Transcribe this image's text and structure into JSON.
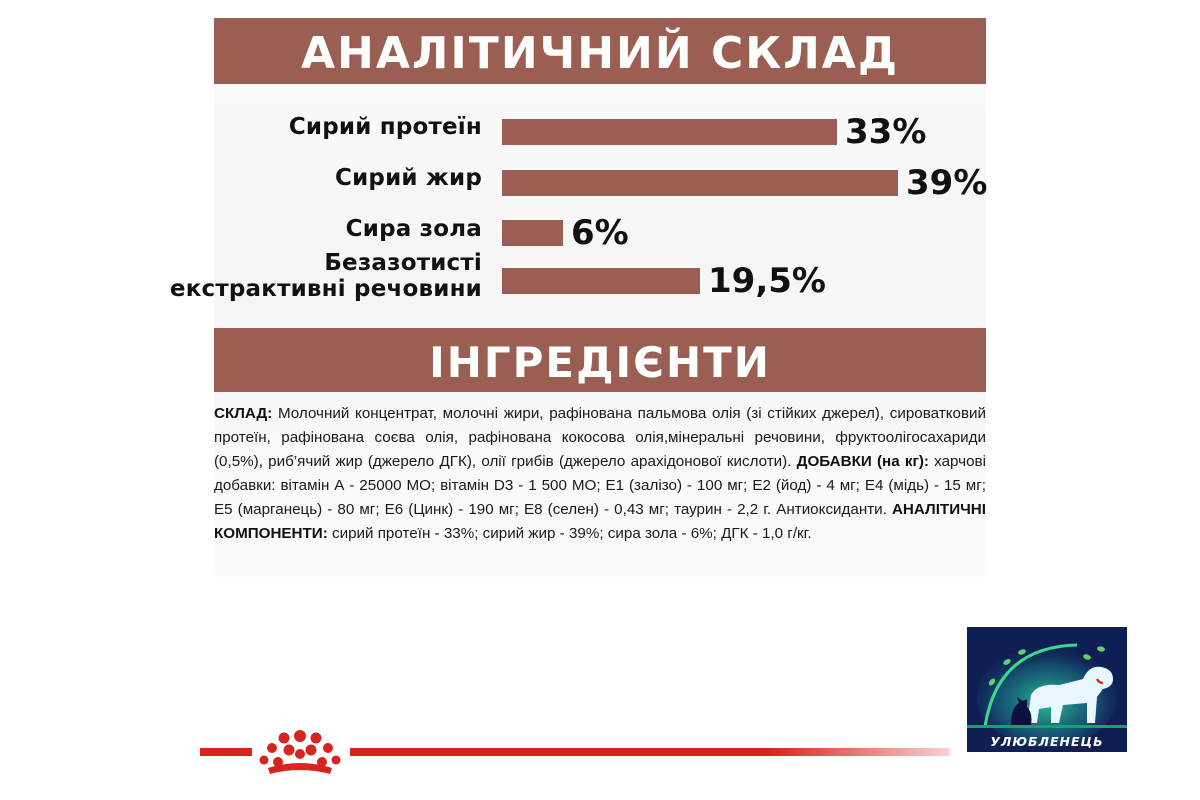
{
  "analysis": {
    "title": "АНАЛІТИЧНИЙ СКЛАД",
    "rows": [
      {
        "label_lines": [
          "Сирий протеїн"
        ],
        "percent_label": "33%",
        "value": 33
      },
      {
        "label_lines": [
          "Сирий жир"
        ],
        "percent_label": "39%",
        "value": 39
      },
      {
        "label_lines": [
          "Сира зола"
        ],
        "percent_label": "6%",
        "value": 6
      },
      {
        "label_lines": [
          "Безазотисті",
          "екстрактивні речовини"
        ],
        "percent_label": "19,5%",
        "value": 19.5
      }
    ],
    "bar_color": "#9a5e52"
  },
  "ingredients": {
    "title": "ІНГРЕДІЄНТИ",
    "composition_label": "СКЛАД:",
    "composition_text": " Молочний концентрат, молочні жири, рафінована пальмова олія (зі стійких джерел), сироватковий протеїн, рафінована соєва олія, рафінована кокосова олія,мінеральні речовини, фруктоолігосахариди (0,5%), риб’ячий жир (джерело ДГК), олії грибів (джерело арахідонової кислоти).",
    "additives_label": "ДОБАВКИ (на кг):",
    "additives_text": " харчові добавки: вітамін А - 25000 МО; вітамін D3 - 1 500 МО; Е1 (залізо) - 100 мг; Е2 (йод) - 4 мг; Е4 (мідь) - 15 мг;  Е5 (марганець) - 80 мг; Е6 (Цинк) - 190 мг; Е8 (селен) - 0,43 мг; таурин - 2,2 г. Антиоксиданти.",
    "components_label": "АНАЛІТИЧНІ КОМПОНЕНТИ:",
    "components_text": " сирий протеїн - 33%; сирий жир - 39%; сира зола - 6%; ДГК - 1,0 г/кг."
  },
  "colors": {
    "banner": "#9a5e52",
    "brand_red": "#d8241e",
    "logo_bg": "#0f1f54",
    "logo_glow": "#2fd6a0"
  },
  "footer": {
    "crown_icon": "royal-canin-crown-icon"
  },
  "logo": {
    "icon": "dog-cat-logo-icon",
    "text": "УЛЮБЛЕНЕЦЬ"
  }
}
